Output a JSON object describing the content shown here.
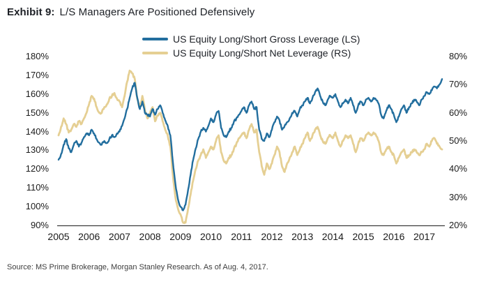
{
  "title": {
    "label": "Exhibit 9:",
    "text": "L/S Managers Are Positioned Defensively"
  },
  "source": "Source: MS Prime Brokerage, Morgan Stanley Research. As of Aug. 4, 2017.",
  "colors": {
    "gross_line": "#226e9e",
    "net_line": "#e5cf93",
    "axis_line": "#3c3c3c",
    "text": "#1d2026"
  },
  "chart_data": {
    "type": "line",
    "title": "L/S Managers Are Positioned Defensively",
    "x_start_year": 2005.0,
    "x_end_year": 2017.583,
    "x_frequency": "monthly",
    "x_tick_labels": [
      "2005",
      "2006",
      "2007",
      "2008",
      "2009",
      "2010",
      "2011",
      "2012",
      "2013",
      "2014",
      "2015",
      "2016",
      "2017"
    ],
    "grid": "off",
    "legend_position": "top-center",
    "axes": {
      "left": {
        "lim": [
          90,
          180
        ],
        "tick_labels": [
          "180%",
          "170%",
          "160%",
          "150%",
          "140%",
          "130%",
          "120%",
          "110%",
          "100%",
          "90%"
        ],
        "tick_values": [
          180,
          170,
          160,
          150,
          140,
          130,
          120,
          110,
          100,
          90
        ]
      },
      "right": {
        "lim": [
          20,
          80
        ],
        "tick_labels": [
          "80%",
          "70%",
          "60%",
          "50%",
          "40%",
          "30%",
          "20%"
        ],
        "tick_values": [
          80,
          70,
          60,
          50,
          40,
          30,
          20
        ]
      }
    },
    "series": [
      {
        "name": "US Equity Long/Short Gross Leverage (LS)",
        "axis": "left",
        "color_key": "gross_line",
        "unit": "%",
        "values": [
          125,
          128,
          133,
          136,
          131,
          129,
          133,
          135,
          132,
          134,
          137,
          139,
          138,
          141,
          139,
          136,
          134,
          133,
          135,
          134,
          136,
          138,
          137,
          139,
          140,
          143,
          147,
          152,
          158,
          163,
          166,
          158,
          152,
          156,
          150,
          149,
          148,
          152,
          149,
          152,
          154,
          150,
          146,
          143,
          138,
          124,
          112,
          104,
          100,
          98,
          101,
          109,
          117,
          125,
          131,
          136,
          140,
          142,
          140,
          143,
          147,
          145,
          149,
          151,
          142,
          138,
          137,
          140,
          142,
          145,
          147,
          149,
          151,
          153,
          150,
          154,
          156,
          152,
          153,
          141,
          136,
          135,
          139,
          137,
          141,
          145,
          148,
          146,
          141,
          143,
          145,
          147,
          150,
          151,
          148,
          152,
          154,
          156,
          158,
          155,
          158,
          161,
          163,
          159,
          156,
          154,
          157,
          159,
          158,
          160,
          156,
          153,
          155,
          157,
          155,
          158,
          154,
          150,
          154,
          156,
          154,
          157,
          158,
          156,
          158,
          157,
          155,
          149,
          147,
          151,
          154,
          152,
          149,
          145,
          148,
          152,
          154,
          150,
          153,
          155,
          157,
          156,
          154,
          157,
          159,
          161,
          160,
          162,
          164,
          163,
          165,
          168
        ]
      },
      {
        "name": "US Equity Long/Short Net Leverage (RS)",
        "axis": "right",
        "color_key": "net_line",
        "unit": "%",
        "values": [
          52,
          55,
          58,
          56,
          53,
          54,
          56,
          55,
          57,
          56,
          58,
          60,
          63,
          66,
          65,
          62,
          60,
          60,
          62,
          63,
          65,
          66,
          67,
          65,
          64,
          62,
          66,
          71,
          75,
          74,
          72,
          65,
          62,
          66,
          61,
          58,
          60,
          62,
          57,
          59,
          60,
          57,
          54,
          52,
          48,
          38,
          30,
          26,
          24,
          21,
          21,
          26,
          31,
          36,
          40,
          43,
          45,
          47,
          44,
          46,
          48,
          47,
          50,
          52,
          46,
          43,
          42,
          44,
          45,
          47,
          49,
          51,
          52,
          53,
          51,
          54,
          56,
          53,
          54,
          46,
          41,
          38,
          42,
          40,
          42,
          45,
          48,
          46,
          41,
          39,
          42,
          44,
          46,
          48,
          45,
          47,
          49,
          51,
          53,
          50,
          52,
          54,
          55,
          52,
          50,
          49,
          51,
          52,
          51,
          53,
          50,
          48,
          50,
          52,
          51,
          52,
          49,
          46,
          49,
          51,
          50,
          52,
          53,
          52,
          53,
          52,
          50,
          46,
          45,
          47,
          48,
          46,
          45,
          42,
          44,
          46,
          47,
          44,
          45,
          46,
          47,
          46,
          45,
          46,
          47,
          49,
          48,
          50,
          51,
          49,
          48,
          47
        ]
      }
    ]
  }
}
